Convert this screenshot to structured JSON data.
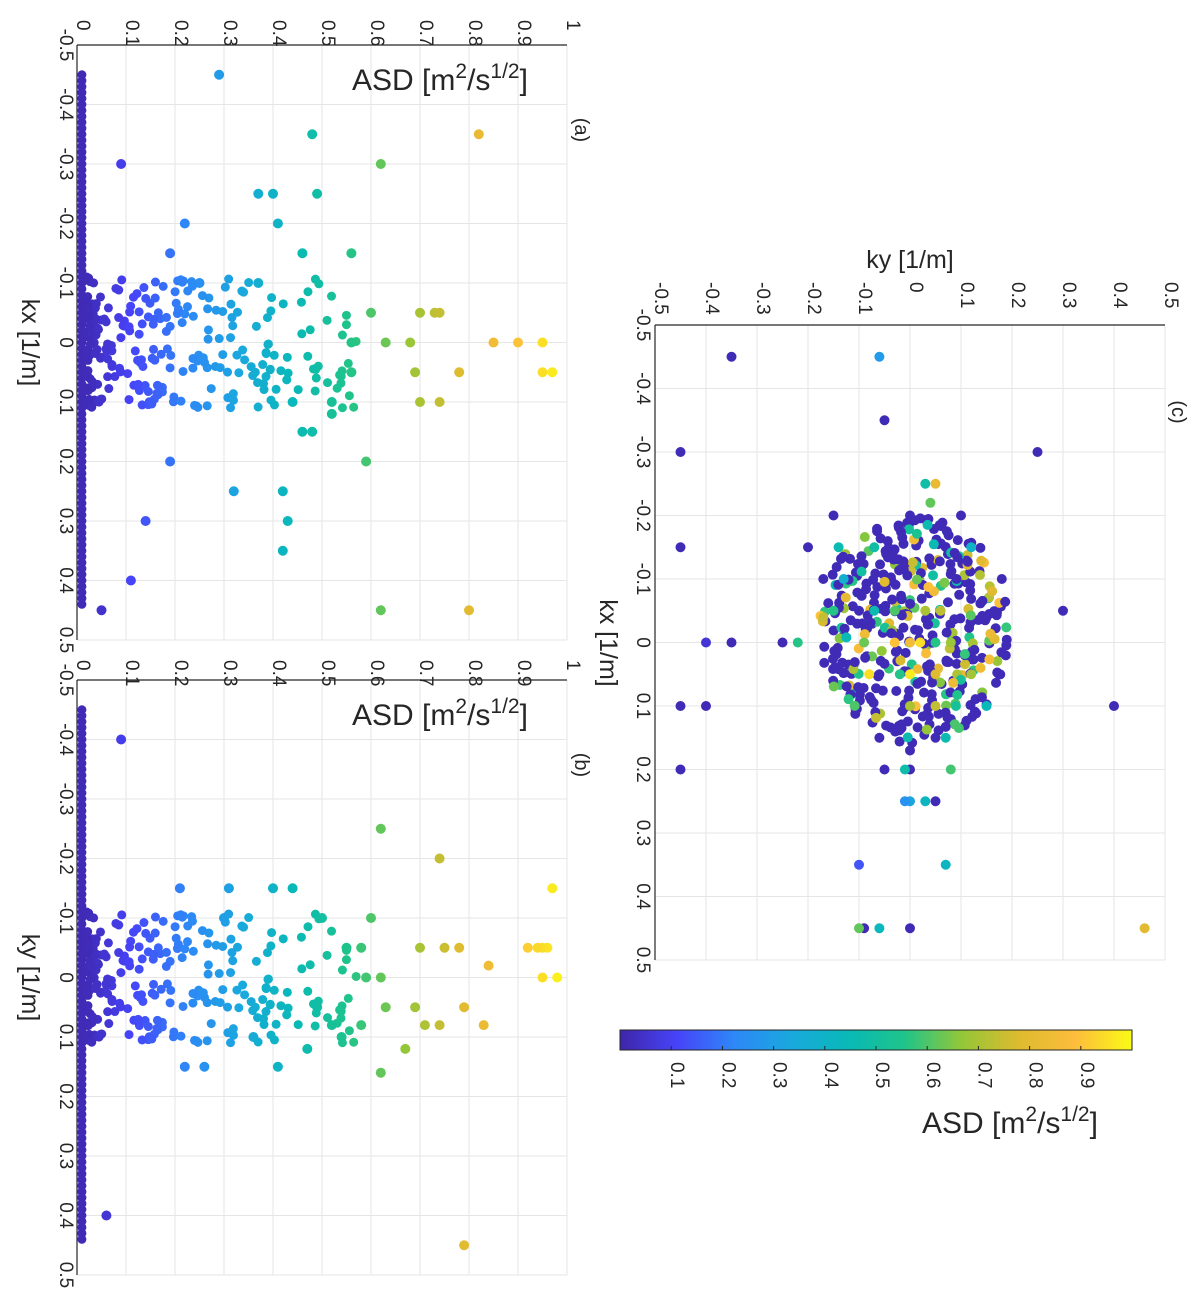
{
  "figure": {
    "colormap": [
      "#3e26a8",
      "#4743f9",
      "#2e87f7",
      "#1aa8de",
      "#08b9b7",
      "#1fc48a",
      "#92c738",
      "#ddbb2f",
      "#fdbc3c",
      "#f9fb15"
    ]
  },
  "chart_data": [
    {
      "type": "scatter",
      "panel_label": "(a)",
      "xlabel": "kx [1/m]",
      "ylabel": "ASD [m²/s¹ᐟ²]",
      "ylabel_base": "ASD [m",
      "ylabel_sup1": "2",
      "ylabel_mid": "/s",
      "ylabel_sup2": "1/2",
      "ylabel_end": "]",
      "xlim": [
        -0.5,
        0.5
      ],
      "ylim": [
        0,
        1
      ],
      "xticks": [
        "-0.5",
        "-0.4",
        "-0.3",
        "-0.2",
        "-0.1",
        "0",
        "0.1",
        "0.2",
        "0.3",
        "0.4",
        "0.5"
      ],
      "yticks": [
        "0",
        "0.1",
        "0.2",
        "0.3",
        "0.4",
        "0.5",
        "0.6",
        "0.7",
        "0.8",
        "0.9",
        "1"
      ],
      "grid": true,
      "points": [
        [
          -0.45,
          0.29
        ],
        [
          -0.35,
          0.48
        ],
        [
          -0.35,
          0.82
        ],
        [
          -0.3,
          0.09
        ],
        [
          -0.3,
          0.62
        ],
        [
          -0.25,
          0.49
        ],
        [
          -0.25,
          0.37
        ],
        [
          -0.25,
          0.4
        ],
        [
          -0.2,
          0.22
        ],
        [
          -0.2,
          0.41
        ],
        [
          -0.15,
          0.19
        ],
        [
          -0.15,
          0.56
        ],
        [
          -0.15,
          0.46
        ],
        [
          -0.1,
          0.25
        ],
        [
          -0.1,
          0.37
        ],
        [
          -0.05,
          0.73
        ],
        [
          -0.05,
          0.7
        ],
        [
          -0.05,
          0.6
        ],
        [
          -0.05,
          0.74
        ],
        [
          0.0,
          0.85
        ],
        [
          0.0,
          0.9
        ],
        [
          0.0,
          0.95
        ],
        [
          0.0,
          0.63
        ],
        [
          0.0,
          0.56
        ],
        [
          0.0,
          0.68
        ],
        [
          0.05,
          0.97
        ],
        [
          0.05,
          0.95
        ],
        [
          0.05,
          0.78
        ],
        [
          0.05,
          0.69
        ],
        [
          0.05,
          0.56
        ],
        [
          0.1,
          0.7
        ],
        [
          0.1,
          0.74
        ],
        [
          0.1,
          0.52
        ],
        [
          0.1,
          0.44
        ],
        [
          0.15,
          0.46
        ],
        [
          0.15,
          0.48
        ],
        [
          0.2,
          0.59
        ],
        [
          0.25,
          0.32
        ],
        [
          0.25,
          0.42
        ],
        [
          0.3,
          0.43
        ],
        [
          0.3,
          0.14
        ],
        [
          0.35,
          0.42
        ],
        [
          0.4,
          0.11
        ],
        [
          0.45,
          0.62
        ],
        [
          0.45,
          0.8
        ],
        [
          0.45,
          0.05
        ],
        [
          0.2,
          0.19
        ],
        [
          0.12,
          0.52
        ]
      ]
    },
    {
      "type": "scatter",
      "panel_label": "(b)",
      "xlabel": "ky [1/m]",
      "ylabel_base": "ASD [m",
      "ylabel_sup1": "2",
      "ylabel_mid": "/s",
      "ylabel_sup2": "1/2",
      "ylabel_end": "]",
      "xlim": [
        -0.5,
        0.5
      ],
      "ylim": [
        0,
        1
      ],
      "xticks": [
        "-0.5",
        "-0.4",
        "-0.3",
        "-0.2",
        "-0.1",
        "0",
        "0.1",
        "0.2",
        "0.3",
        "0.4",
        "0.5"
      ],
      "yticks": [
        "0",
        "0.1",
        "0.2",
        "0.3",
        "0.4",
        "0.5",
        "0.6",
        "0.7",
        "0.8",
        "0.9",
        "1"
      ],
      "grid": true,
      "points": [
        [
          -0.4,
          0.09
        ],
        [
          -0.25,
          0.62
        ],
        [
          -0.2,
          0.74
        ],
        [
          -0.15,
          0.21
        ],
        [
          -0.15,
          0.31
        ],
        [
          -0.15,
          0.4
        ],
        [
          -0.15,
          0.44
        ],
        [
          -0.15,
          0.97
        ],
        [
          -0.1,
          0.6
        ],
        [
          -0.1,
          0.3
        ],
        [
          -0.1,
          0.5
        ],
        [
          -0.05,
          0.55
        ],
        [
          -0.05,
          0.58
        ],
        [
          -0.05,
          0.7
        ],
        [
          -0.05,
          0.75
        ],
        [
          -0.05,
          0.78
        ],
        [
          -0.05,
          0.92
        ],
        [
          -0.05,
          0.96
        ],
        [
          -0.05,
          0.95
        ],
        [
          -0.05,
          0.94
        ],
        [
          -0.02,
          0.84
        ],
        [
          0.0,
          0.95
        ],
        [
          0.0,
          0.98
        ],
        [
          0.0,
          0.62
        ],
        [
          0.0,
          0.59
        ],
        [
          0.05,
          0.69
        ],
        [
          0.05,
          0.63
        ],
        [
          0.05,
          0.49
        ],
        [
          0.05,
          0.79
        ],
        [
          0.08,
          0.52
        ],
        [
          0.08,
          0.58
        ],
        [
          0.08,
          0.71
        ],
        [
          0.08,
          0.74
        ],
        [
          0.08,
          0.83
        ],
        [
          0.12,
          0.67
        ],
        [
          0.12,
          0.47
        ],
        [
          0.15,
          0.22
        ],
        [
          0.15,
          0.26
        ],
        [
          0.15,
          0.41
        ],
        [
          0.16,
          0.62
        ],
        [
          0.4,
          0.06
        ],
        [
          0.45,
          0.79
        ],
        [
          0.1,
          0.54
        ],
        [
          0.1,
          0.36
        ]
      ]
    },
    {
      "type": "scatter",
      "panel_label": "(c)",
      "xlabel": "kx [1/m]",
      "ylabel": "ky [1/m]",
      "xlim": [
        -0.5,
        0.5
      ],
      "ylim": [
        -0.5,
        0.5
      ],
      "xticks": [
        "-0.5",
        "-0.4",
        "-0.3",
        "-0.2",
        "-0.1",
        "0",
        "0.1",
        "0.2",
        "0.3",
        "0.4",
        "0.5"
      ],
      "yticks": [
        "-0.5",
        "-0.4",
        "-0.3",
        "-0.2",
        "-0.1",
        "0",
        "0.1",
        "0.2",
        "0.3",
        "0.4",
        "0.5"
      ],
      "grid": true,
      "points": [
        [
          -0.45,
          -0.35,
          0.02
        ],
        [
          -0.45,
          -0.06,
          0.29
        ],
        [
          -0.35,
          -0.05,
          0.02
        ],
        [
          -0.3,
          -0.45,
          0.02
        ],
        [
          -0.3,
          0.25,
          0.02
        ],
        [
          -0.25,
          0.05,
          0.82
        ],
        [
          -0.25,
          0.03,
          0.48
        ],
        [
          -0.22,
          0.04,
          0.62
        ],
        [
          -0.2,
          -0.15,
          0.02
        ],
        [
          -0.2,
          0.0,
          0.02
        ],
        [
          -0.2,
          0.1,
          0.02
        ],
        [
          -0.15,
          -0.2,
          0.02
        ],
        [
          -0.15,
          -0.45,
          0.02
        ],
        [
          -0.15,
          -0.14,
          0.46
        ],
        [
          -0.15,
          -0.07,
          0.49
        ],
        [
          -0.15,
          0.12,
          0.4
        ],
        [
          -0.1,
          -0.17,
          0.02
        ],
        [
          -0.1,
          -0.13,
          0.37
        ],
        [
          -0.1,
          0.18,
          0.02
        ],
        [
          -0.05,
          0.3,
          0.02
        ],
        [
          -0.05,
          -0.15,
          0.56
        ],
        [
          -0.05,
          0.06,
          0.73
        ],
        [
          -0.05,
          0.03,
          0.7
        ],
        [
          -0.05,
          -0.03,
          0.6
        ],
        [
          -0.05,
          -0.1,
          0.02
        ],
        [
          -0.05,
          -0.07,
          0.46
        ],
        [
          -0.04,
          -0.17,
          0.74
        ],
        [
          0.0,
          -0.4,
          0.06
        ],
        [
          0.0,
          -0.35,
          0.02
        ],
        [
          0.0,
          -0.25,
          0.02
        ],
        [
          0.0,
          -0.22,
          0.56
        ],
        [
          0.0,
          -0.09,
          0.63
        ],
        [
          0.0,
          0.0,
          0.85
        ],
        [
          0.0,
          -0.03,
          0.9
        ],
        [
          0.0,
          0.02,
          0.95
        ],
        [
          0.0,
          0.08,
          0.68
        ],
        [
          0.0,
          0.05,
          0.56
        ],
        [
          0.05,
          0.0,
          0.97
        ],
        [
          0.05,
          -0.08,
          0.95
        ],
        [
          0.05,
          0.05,
          0.78
        ],
        [
          0.05,
          0.12,
          0.69
        ],
        [
          0.05,
          -0.02,
          0.56
        ],
        [
          0.05,
          -0.06,
          0.02
        ],
        [
          0.1,
          -0.45,
          0.02
        ],
        [
          0.1,
          -0.4,
          0.02
        ],
        [
          0.1,
          0.4,
          0.02
        ],
        [
          0.1,
          0.0,
          0.7
        ],
        [
          0.1,
          0.05,
          0.74
        ],
        [
          0.1,
          0.09,
          0.52
        ],
        [
          0.1,
          0.15,
          0.44
        ],
        [
          0.15,
          0.07,
          0.46
        ],
        [
          0.15,
          0.05,
          0.02
        ],
        [
          0.17,
          0.0,
          0.02
        ],
        [
          0.15,
          -0.06,
          0.02
        ],
        [
          0.2,
          -0.45,
          0.02
        ],
        [
          0.2,
          0.0,
          0.02
        ],
        [
          0.2,
          -0.01,
          0.48
        ],
        [
          0.2,
          -0.05,
          0.02
        ],
        [
          0.2,
          0.08,
          0.59
        ],
        [
          0.25,
          0.0,
          0.32
        ],
        [
          0.25,
          0.05,
          0.02
        ],
        [
          0.25,
          -0.01,
          0.26
        ],
        [
          0.25,
          0.03,
          0.42
        ],
        [
          0.35,
          -0.1,
          0.14
        ],
        [
          0.35,
          0.07,
          0.42
        ],
        [
          0.45,
          -0.09,
          0.02
        ],
        [
          0.45,
          -0.06,
          0.43
        ],
        [
          0.45,
          0.0,
          0.02
        ],
        [
          0.45,
          0.46,
          0.8
        ],
        [
          0.45,
          -0.1,
          0.62
        ]
      ]
    }
  ],
  "colorbar": {
    "label_base": "ASD [m",
    "label_sup1": "2",
    "label_mid": "/s",
    "label_sup2": "1/2",
    "label_end": "]",
    "ticks": [
      "0.1",
      "0.2",
      "0.3",
      "0.4",
      "0.5",
      "0.6",
      "0.7",
      "0.8",
      "0.9"
    ],
    "range": [
      0,
      1
    ]
  }
}
